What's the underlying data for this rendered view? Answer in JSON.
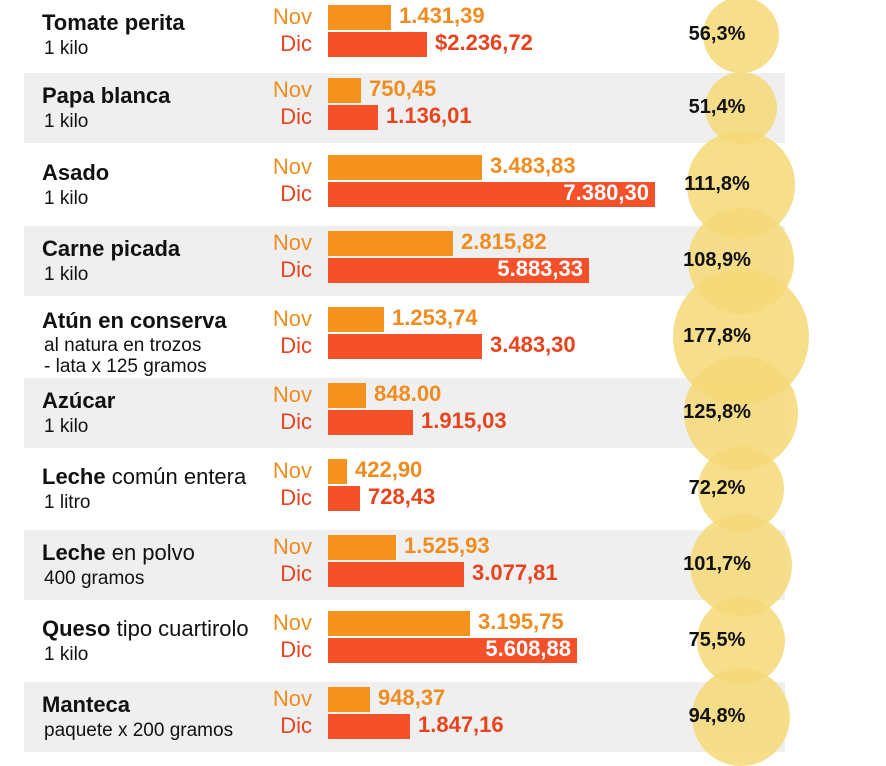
{
  "chart_data": {
    "type": "bar",
    "series_labels": {
      "nov": "Nov",
      "dic": "Dic"
    },
    "items": [
      {
        "name": "Tomate perita",
        "name_rest": "",
        "sub": [
          "1 kilo"
        ],
        "nov": 1431.39,
        "dic": 2236.72,
        "nov_label": "1.431,39",
        "dic_label": "$2.236,72",
        "pct": "56,3%",
        "pct_value": 56.3
      },
      {
        "name": "Papa blanca",
        "name_rest": "",
        "sub": [
          "1 kilo"
        ],
        "nov": 750.45,
        "dic": 1136.01,
        "nov_label": "750,45",
        "dic_label": "1.136,01",
        "pct": "51,4%",
        "pct_value": 51.4
      },
      {
        "name": "Asado",
        "name_rest": "",
        "sub": [
          "1 kilo"
        ],
        "nov": 3483.83,
        "dic": 7380.3,
        "nov_label": "3.483,83",
        "dic_label": "7.380,30",
        "pct": "111,8%",
        "pct_value": 111.8
      },
      {
        "name": "Carne picada",
        "name_rest": "",
        "sub": [
          "1 kilo"
        ],
        "nov": 2815.82,
        "dic": 5883.33,
        "nov_label": "2.815,82",
        "dic_label": "5.883,33",
        "pct": "108,9%",
        "pct_value": 108.9
      },
      {
        "name": "Atún en conserva",
        "name_rest": "",
        "sub": [
          "al natura en trozos",
          "- lata x 125 gramos"
        ],
        "nov": 1253.74,
        "dic": 3483.3,
        "nov_label": "1.253,74",
        "dic_label": "3.483,30",
        "pct": "177,8%",
        "pct_value": 177.8
      },
      {
        "name": "Azúcar",
        "name_rest": "",
        "sub": [
          "1 kilo"
        ],
        "nov": 848.0,
        "dic": 1915.03,
        "nov_label": "848.00",
        "dic_label": "1.915,03",
        "pct": "125,8%",
        "pct_value": 125.8
      },
      {
        "name": "Leche",
        "name_rest": " común entera",
        "sub": [
          "1 litro"
        ],
        "nov": 422.9,
        "dic": 728.43,
        "nov_label": "422,90",
        "dic_label": "728,43",
        "pct": "72,2%",
        "pct_value": 72.2
      },
      {
        "name": "Leche",
        "name_rest": " en polvo",
        "sub": [
          "400 gramos"
        ],
        "nov": 1525.93,
        "dic": 3077.81,
        "nov_label": "1.525,93",
        "dic_label": "3.077,81",
        "pct": "101,7%",
        "pct_value": 101.7
      },
      {
        "name": "Queso",
        "name_rest": " tipo cuartirolo",
        "sub": [
          "1 kilo"
        ],
        "nov": 3195.75,
        "dic": 5608.88,
        "nov_label": "3.195,75",
        "dic_label": "5.608,88",
        "pct": "75,5%",
        "pct_value": 75.5
      },
      {
        "name": "Manteca",
        "name_rest": "",
        "sub": [
          "paquete x 200 gramos"
        ],
        "nov": 948.37,
        "dic": 1847.16,
        "nov_label": "948,37",
        "dic_label": "1.847,16",
        "pct": "94,8%",
        "pct_value": 94.8
      }
    ],
    "colors": {
      "nov": "#f5921e",
      "dic": "#f4502a",
      "circle": "#f6d877",
      "row_shade": "#efefef"
    }
  }
}
